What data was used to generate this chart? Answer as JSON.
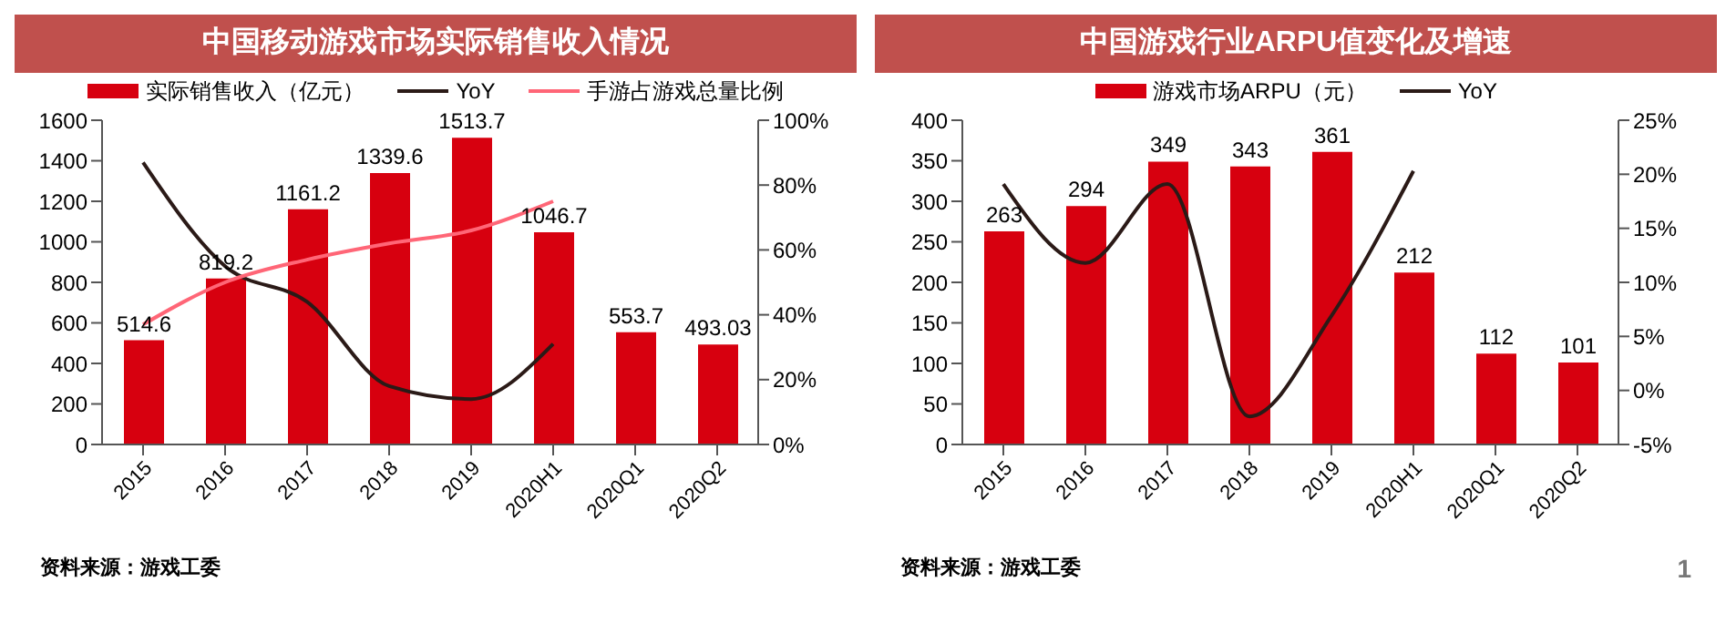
{
  "chart_data": [
    {
      "type": "bar",
      "title": "中国移动游戏市场实际销售收入情况",
      "categories": [
        "2015",
        "2016",
        "2017",
        "2018",
        "2019",
        "2020H1",
        "2020Q1",
        "2020Q2"
      ],
      "series": [
        {
          "name": "实际销售收入（亿元）",
          "color": "#d7000f",
          "values": [
            514.6,
            819.2,
            1161.2,
            1339.6,
            1513.7,
            1046.7,
            553.7,
            493.03
          ],
          "value_labels": [
            "514.6",
            "819.2",
            "1161.2",
            "1339.6",
            "1513.7",
            "1046.7",
            "553.7",
            "493.03"
          ]
        },
        {
          "name": "YoY",
          "type": "line",
          "axis": "y2",
          "color": "#2b1a17",
          "values": [
            87,
            55,
            44,
            18,
            14,
            31,
            null,
            null
          ]
        },
        {
          "name": "手游占游戏总量比例",
          "type": "line",
          "axis": "y2",
          "color": "#ff6677",
          "values": [
            37,
            50,
            57,
            62,
            66,
            75,
            null,
            null
          ]
        }
      ],
      "ylim": [
        0,
        1600
      ],
      "yticks": [
        0,
        200,
        400,
        600,
        800,
        1000,
        1200,
        1400,
        1600
      ],
      "y2lim": [
        0,
        100
      ],
      "y2ticks": [
        {
          "value": 0,
          "label": "0%"
        },
        {
          "value": 20,
          "label": "20%"
        },
        {
          "value": 40,
          "label": "40%"
        },
        {
          "value": 60,
          "label": "60%"
        },
        {
          "value": 80,
          "label": "80%"
        },
        {
          "value": 100,
          "label": "100%"
        }
      ],
      "legend": "top",
      "annotations": [
        "资料来源：游戏工委"
      ]
    },
    {
      "type": "bar",
      "title": "中国游戏行业ARPU值变化及增速",
      "categories": [
        "2015",
        "2016",
        "2017",
        "2018",
        "2019",
        "2020H1",
        "2020Q1",
        "2020Q2"
      ],
      "series": [
        {
          "name": "游戏市场ARPU（元）",
          "color": "#d7000f",
          "values": [
            263,
            294,
            349,
            343,
            361,
            212,
            112,
            101
          ],
          "value_labels": [
            "263",
            "294",
            "349",
            "343",
            "361",
            "212",
            "112",
            "101"
          ]
        },
        {
          "name": "YoY",
          "type": "line",
          "axis": "y2",
          "color": "#2b1a17",
          "values": [
            19.1,
            11.8,
            19.1,
            -2.4,
            6.9,
            20.3,
            null,
            null
          ]
        }
      ],
      "ylim": [
        0,
        400
      ],
      "yticks": [
        0,
        50,
        100,
        150,
        200,
        250,
        300,
        350,
        400
      ],
      "y2lim": [
        -5,
        25
      ],
      "y2ticks": [
        {
          "value": -5,
          "label": "-5%"
        },
        {
          "value": 0,
          "label": "0%"
        },
        {
          "value": 5,
          "label": "5%"
        },
        {
          "value": 10,
          "label": "10%"
        },
        {
          "value": 15,
          "label": "15%"
        },
        {
          "value": 20,
          "label": "20%"
        },
        {
          "value": 25,
          "label": "25%"
        }
      ],
      "legend": "top",
      "annotations": [
        "资料来源：游戏工委",
        "1"
      ]
    }
  ]
}
